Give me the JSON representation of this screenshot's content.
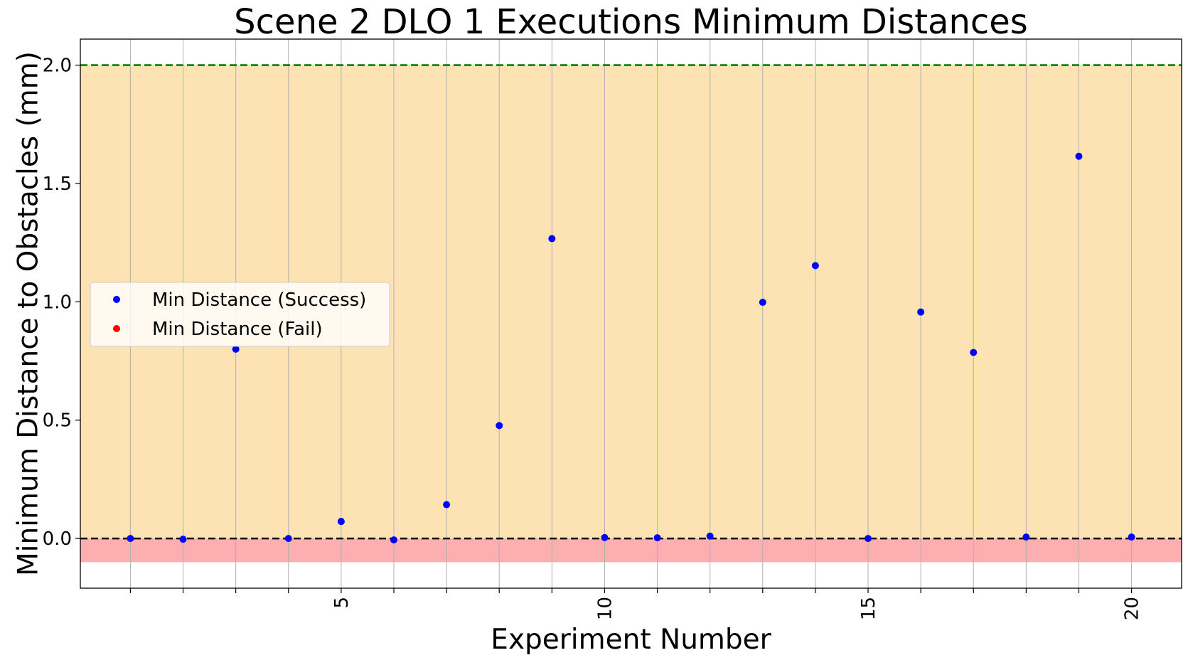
{
  "chart_data": {
    "type": "scatter",
    "title": "Scene 2 DLO 1 Executions Minimum Distances",
    "xlabel": "Experiment Number",
    "ylabel": "Minimum Distance to Obstacles (mm)",
    "xlim": [
      0.05,
      20.95
    ],
    "ylim": [
      -0.21,
      2.11
    ],
    "x_ticks": [
      1,
      2,
      3,
      4,
      5,
      6,
      7,
      8,
      9,
      10,
      11,
      12,
      13,
      14,
      15,
      16,
      17,
      18,
      19,
      20
    ],
    "x_tick_labels": [
      "",
      "",
      "",
      "",
      "5",
      "",
      "",
      "",
      "",
      "10",
      "",
      "",
      "",
      "",
      "15",
      "",
      "",
      "",
      "",
      "20"
    ],
    "x_tick_label_rotation": "vertical",
    "y_ticks": [
      0.0,
      0.5,
      1.0,
      1.5,
      2.0
    ],
    "y_tick_labels": [
      "0.0",
      "0.5",
      "1.0",
      "1.5",
      "2.0"
    ],
    "grid": "vertical lines at x ticks",
    "legend_position": "center-left",
    "bands": [
      {
        "name": "safe-zone",
        "y_from": 0.0,
        "y_to": 2.0,
        "color": "#fde2b4"
      },
      {
        "name": "collision-zone",
        "y_from": -0.1,
        "y_to": 0.0,
        "color": "#fdafb0"
      }
    ],
    "reference_lines": [
      {
        "name": "upper-threshold",
        "y": 2.0,
        "color": "#008000",
        "style": "dashed"
      },
      {
        "name": "zero-line",
        "y": 0.0,
        "color": "#000000",
        "style": "dashed"
      }
    ],
    "series": [
      {
        "name": "Min Distance (Success)",
        "color": "#0000ff",
        "x": [
          1,
          2,
          3,
          4,
          5,
          6,
          7,
          8,
          9,
          10,
          11,
          12,
          13,
          14,
          15,
          16,
          17,
          18,
          19,
          20
        ],
        "y": [
          0.0,
          -0.003,
          0.8,
          0.0,
          0.072,
          -0.006,
          0.143,
          0.477,
          1.267,
          0.004,
          0.003,
          0.01,
          0.998,
          1.153,
          0.0,
          0.957,
          0.786,
          0.006,
          1.615,
          0.006
        ]
      },
      {
        "name": "Min Distance (Fail)",
        "color": "#ff0000",
        "x": [],
        "y": []
      }
    ]
  }
}
